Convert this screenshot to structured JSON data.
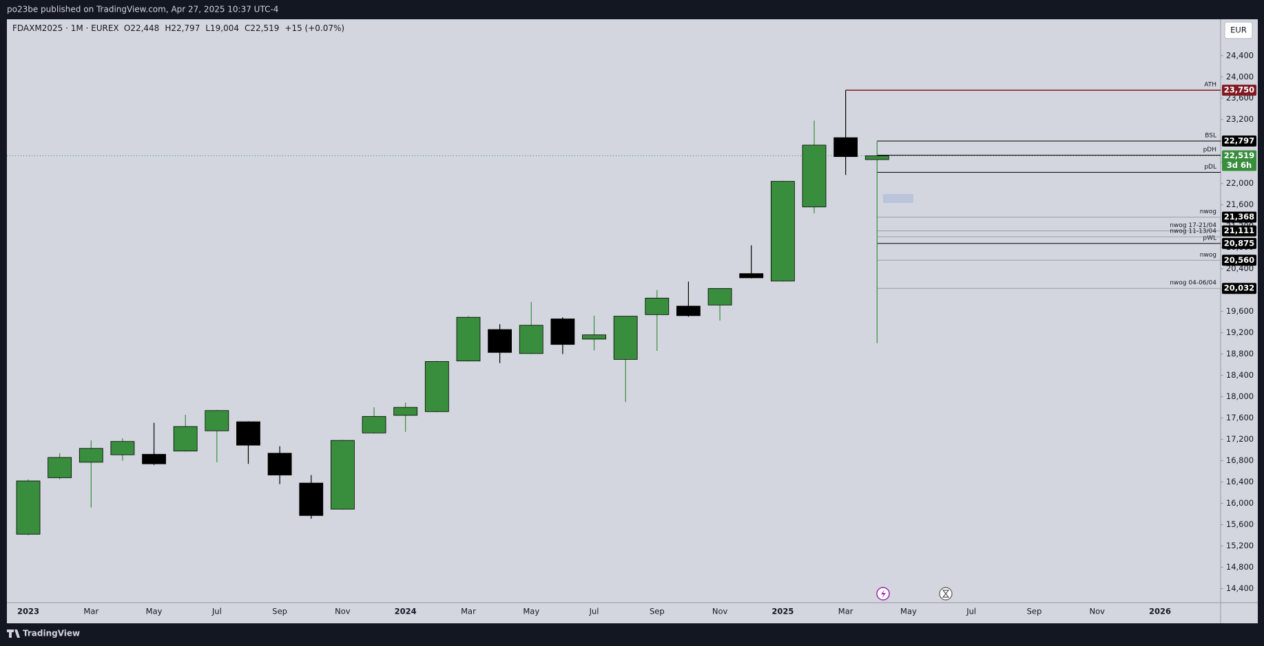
{
  "page": {
    "publisher": "po23be published on TradingView.com, Apr 27, 2025 10:37 UTC-4",
    "brand": "TradingView",
    "currency": "EUR"
  },
  "chart_data": {
    "type": "candlestick",
    "title": "FDAXM2025 · 1M · EUREX",
    "header_values": [
      "O22,448",
      "H22,797",
      "L19,004",
      "C22,519",
      "+15 (+0.07%)"
    ],
    "categories": [
      "2023",
      null,
      "Mar",
      null,
      "May",
      null,
      "Jul",
      null,
      "Sep",
      null,
      "Nov",
      null,
      "2024",
      null,
      "Mar",
      null,
      "May",
      null,
      "Jul",
      null,
      "Sep",
      null,
      "Nov",
      null,
      "2025",
      null,
      "Mar",
      null,
      "May",
      null,
      "Jul",
      null,
      "Sep",
      null,
      "Nov",
      null,
      "2026",
      null
    ],
    "open": [
      15420,
      16480,
      16770,
      16910,
      16920,
      16980,
      17360,
      17530,
      16940,
      16380,
      15890,
      17320,
      17650,
      17720,
      18670,
      19260,
      18810,
      19460,
      19080,
      18700,
      19540,
      19700,
      19720,
      20310,
      20170,
      21560,
      22860,
      22448,
      null,
      null,
      null,
      null,
      null,
      null,
      null,
      null,
      null,
      null
    ],
    "high": [
      16450,
      16940,
      17180,
      17220,
      17510,
      17660,
      17750,
      17540,
      17070,
      16530,
      17190,
      17800,
      17890,
      18670,
      19510,
      19360,
      19780,
      19490,
      19520,
      19510,
      20000,
      20160,
      20040,
      20840,
      22050,
      23180,
      23750,
      22797,
      null,
      null,
      null,
      null,
      null,
      null,
      null,
      null,
      null,
      null
    ],
    "low": [
      15400,
      16450,
      15920,
      16800,
      16720,
      16970,
      16770,
      16740,
      16360,
      15710,
      15880,
      17310,
      17340,
      17710,
      18660,
      18630,
      18800,
      18800,
      18870,
      17900,
      18860,
      19500,
      19430,
      20220,
      20160,
      21440,
      22160,
      19004,
      null,
      null,
      null,
      null,
      null,
      null,
      null,
      null,
      null,
      null
    ],
    "close": [
      16420,
      16860,
      17030,
      17160,
      16740,
      17440,
      17740,
      17090,
      16530,
      15770,
      17180,
      17630,
      17800,
      18660,
      19490,
      18830,
      19340,
      18980,
      19160,
      19510,
      19850,
      19520,
      20030,
      20230,
      22040,
      22720,
      22504,
      22519,
      null,
      null,
      null,
      null,
      null,
      null,
      null,
      null,
      null,
      null
    ],
    "up_color": "#388e3c",
    "down_color": "#000000",
    "last_price_label": "22,519",
    "countdown": "3d 6h",
    "ylim": [
      14136,
      25081
    ],
    "yticks": [
      {
        "value": 14400,
        "label": "14,400"
      },
      {
        "value": 14800,
        "label": "14,800"
      },
      {
        "value": 15200,
        "label": "15,200"
      },
      {
        "value": 15600,
        "label": "15,600"
      },
      {
        "value": 16000,
        "label": "16,000"
      },
      {
        "value": 16400,
        "label": "16,400"
      },
      {
        "value": 16800,
        "label": "16,800"
      },
      {
        "value": 17200,
        "label": "17,200"
      },
      {
        "value": 17600,
        "label": "17,600"
      },
      {
        "value": 18000,
        "label": "18,000"
      },
      {
        "value": 18400,
        "label": "18,400"
      },
      {
        "value": 18800,
        "label": "18,800"
      },
      {
        "value": 19200,
        "label": "19,200"
      },
      {
        "value": 19600,
        "label": "19,600"
      },
      {
        "value": 20000,
        "label": "20,000"
      },
      {
        "value": 20400,
        "label": "20,400"
      },
      {
        "value": 20800,
        "label": "20,800"
      },
      {
        "value": 21200,
        "label": "21,200"
      },
      {
        "value": 21600,
        "label": "21,600"
      },
      {
        "value": 22000,
        "label": "22,000"
      },
      {
        "value": 22400,
        "label": "22,400"
      },
      {
        "value": 22800,
        "label": "22,800"
      },
      {
        "value": 23200,
        "label": "23,200"
      },
      {
        "value": 23600,
        "label": "23,600"
      },
      {
        "value": 24000,
        "label": "24,000"
      },
      {
        "value": 24400,
        "label": "24,400"
      }
    ],
    "levels": [
      {
        "name": "ATH",
        "value": 23750,
        "value_label": "23,750",
        "color": "#801922",
        "label_color": "#2a4bd7"
      },
      {
        "name": "BSL",
        "value": 22797,
        "value_label": "22,797",
        "color": "#000000",
        "label_color": "#000000"
      },
      {
        "name": "pDH",
        "value": 22530,
        "color": "#000000",
        "label_color": "#000000"
      },
      {
        "name": "pDL",
        "value": 22210,
        "color": "#000000",
        "label_color": "#000000"
      },
      {
        "name": "nwog",
        "value": 21368,
        "value_label": "21,368",
        "color": "#9a9ca3",
        "label_color": "#8a8c93"
      },
      {
        "name": "nwog 17-21/04",
        "value": 21111,
        "value_label": "21,111",
        "color": "#9a9ca3",
        "label_color": "#8a8c93"
      },
      {
        "name": "nwog 11-13/04",
        "value": 21000,
        "color": "#9a9ca3",
        "label_color": "#8a8c93"
      },
      {
        "name": "pWL",
        "value": 20875,
        "value_label": "20,875",
        "color": "#000000",
        "label_color": "#000000"
      },
      {
        "name": "nwog",
        "value": 20560,
        "value_label": "20,560",
        "color": "#9a9ca3",
        "label_color": "#8a8c93"
      },
      {
        "name": "nwog 04-06/04",
        "value": 20032,
        "value_label": "20,032",
        "color": "#9a9ca3",
        "label_color": "#8a8c93"
      }
    ]
  }
}
